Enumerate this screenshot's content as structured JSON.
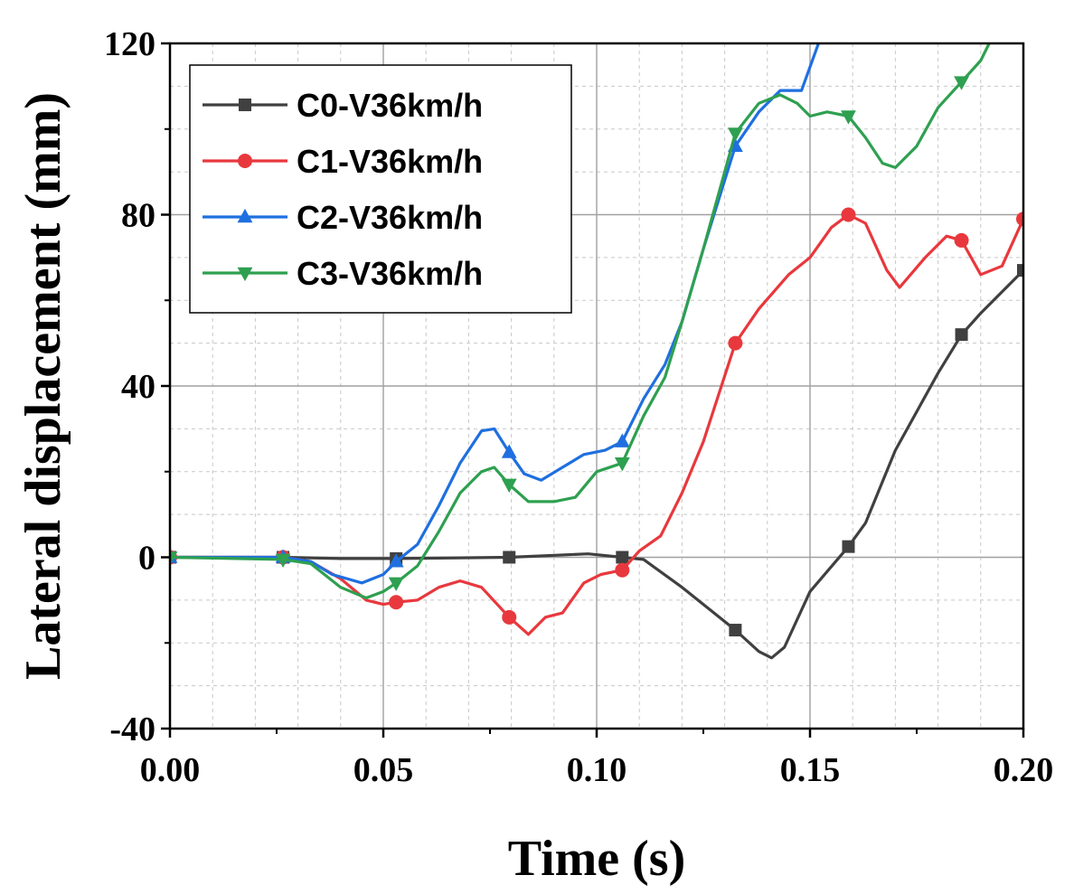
{
  "chart_data": {
    "type": "line",
    "xlabel": "Time (s)",
    "ylabel": "Lateral displacement (mm)",
    "xlim": [
      0,
      0.2
    ],
    "ylim": [
      -40,
      120
    ],
    "x_ticks": [
      0,
      0.05,
      0.1,
      0.15,
      0.2
    ],
    "x_tick_labels": [
      "0.00",
      "0.05",
      "0.10",
      "0.15",
      "0.20"
    ],
    "y_ticks": [
      -40,
      0,
      40,
      80,
      120
    ],
    "y_tick_labels": [
      "-40",
      "0",
      "40",
      "80",
      "120"
    ],
    "grid": true,
    "legend_position": "top-left",
    "series": [
      {
        "name": "C0-V36km/h",
        "color": "#404040",
        "marker": "square",
        "marker_x": [
          0,
          0.0265,
          0.053,
          0.0795,
          0.106,
          0.1325,
          0.159,
          0.1855,
          0.2
        ],
        "points": [
          [
            0,
            0
          ],
          [
            0.0265,
            0
          ],
          [
            0.04,
            -0.3
          ],
          [
            0.053,
            -0.3
          ],
          [
            0.0795,
            0
          ],
          [
            0.098,
            0.8
          ],
          [
            0.106,
            0
          ],
          [
            0.111,
            -0.5
          ],
          [
            0.12,
            -7
          ],
          [
            0.1325,
            -17
          ],
          [
            0.138,
            -22
          ],
          [
            0.141,
            -23.5
          ],
          [
            0.144,
            -21
          ],
          [
            0.15,
            -8
          ],
          [
            0.159,
            2.5
          ],
          [
            0.163,
            8
          ],
          [
            0.17,
            25
          ],
          [
            0.18,
            43
          ],
          [
            0.1855,
            52
          ],
          [
            0.19,
            57
          ],
          [
            0.2,
            67
          ]
        ]
      },
      {
        "name": "C1-V36km/h",
        "color": "#e8383d",
        "marker": "circle",
        "marker_x": [
          0,
          0.0265,
          0.053,
          0.0795,
          0.106,
          0.1325,
          0.159,
          0.1855,
          0.2
        ],
        "points": [
          [
            0,
            0
          ],
          [
            0.0265,
            0
          ],
          [
            0.033,
            -1
          ],
          [
            0.04,
            -5
          ],
          [
            0.046,
            -10
          ],
          [
            0.05,
            -11
          ],
          [
            0.053,
            -10.5
          ],
          [
            0.058,
            -10
          ],
          [
            0.063,
            -7
          ],
          [
            0.068,
            -5.5
          ],
          [
            0.073,
            -7
          ],
          [
            0.0795,
            -14
          ],
          [
            0.084,
            -18
          ],
          [
            0.088,
            -14
          ],
          [
            0.092,
            -13
          ],
          [
            0.097,
            -6
          ],
          [
            0.101,
            -4
          ],
          [
            0.106,
            -3
          ],
          [
            0.11,
            1.5
          ],
          [
            0.115,
            5
          ],
          [
            0.12,
            15
          ],
          [
            0.125,
            27
          ],
          [
            0.1325,
            50
          ],
          [
            0.138,
            58
          ],
          [
            0.145,
            66
          ],
          [
            0.15,
            70
          ],
          [
            0.155,
            77
          ],
          [
            0.159,
            80
          ],
          [
            0.163,
            78
          ],
          [
            0.168,
            67
          ],
          [
            0.171,
            63
          ],
          [
            0.177,
            70
          ],
          [
            0.182,
            75
          ],
          [
            0.1855,
            74
          ],
          [
            0.19,
            66
          ],
          [
            0.195,
            68
          ],
          [
            0.2,
            79
          ]
        ]
      },
      {
        "name": "C2-V36km/h",
        "color": "#1f6fe0",
        "marker": "triangle-up",
        "marker_x": [
          0,
          0.0265,
          0.053,
          0.0795,
          0.106,
          0.1325
        ],
        "points": [
          [
            0,
            0
          ],
          [
            0.0265,
            0
          ],
          [
            0.033,
            -1
          ],
          [
            0.038,
            -4
          ],
          [
            0.045,
            -6
          ],
          [
            0.05,
            -4
          ],
          [
            0.053,
            -1
          ],
          [
            0.058,
            3
          ],
          [
            0.063,
            12
          ],
          [
            0.068,
            22
          ],
          [
            0.073,
            29.5
          ],
          [
            0.076,
            30
          ],
          [
            0.0795,
            24.5
          ],
          [
            0.083,
            19.5
          ],
          [
            0.087,
            18
          ],
          [
            0.092,
            21
          ],
          [
            0.097,
            24
          ],
          [
            0.102,
            25
          ],
          [
            0.106,
            27
          ],
          [
            0.111,
            37
          ],
          [
            0.116,
            45
          ],
          [
            0.12,
            55
          ],
          [
            0.125,
            72
          ],
          [
            0.1325,
            96
          ],
          [
            0.138,
            104
          ],
          [
            0.143,
            109
          ],
          [
            0.148,
            109
          ],
          [
            0.152,
            120
          ]
        ]
      },
      {
        "name": "C3-V36km/h",
        "color": "#2ea050",
        "marker": "triangle-down",
        "marker_x": [
          0,
          0.0265,
          0.053,
          0.0795,
          0.106,
          0.1325,
          0.159,
          0.1855
        ],
        "points": [
          [
            0,
            0
          ],
          [
            0.0265,
            -0.5
          ],
          [
            0.033,
            -1.5
          ],
          [
            0.04,
            -7
          ],
          [
            0.046,
            -9.5
          ],
          [
            0.05,
            -8
          ],
          [
            0.053,
            -6
          ],
          [
            0.058,
            -2
          ],
          [
            0.063,
            6
          ],
          [
            0.068,
            15
          ],
          [
            0.073,
            20
          ],
          [
            0.076,
            21
          ],
          [
            0.0795,
            17
          ],
          [
            0.084,
            13
          ],
          [
            0.09,
            13
          ],
          [
            0.095,
            14
          ],
          [
            0.1,
            20
          ],
          [
            0.106,
            22
          ],
          [
            0.111,
            33
          ],
          [
            0.116,
            42
          ],
          [
            0.12,
            55
          ],
          [
            0.125,
            72
          ],
          [
            0.1325,
            99
          ],
          [
            0.138,
            106
          ],
          [
            0.143,
            108
          ],
          [
            0.147,
            106
          ],
          [
            0.15,
            103
          ],
          [
            0.154,
            104
          ],
          [
            0.159,
            103
          ],
          [
            0.163,
            98
          ],
          [
            0.167,
            92
          ],
          [
            0.17,
            91
          ],
          [
            0.175,
            96
          ],
          [
            0.18,
            105
          ],
          [
            0.1855,
            111
          ],
          [
            0.19,
            116
          ],
          [
            0.192,
            120
          ]
        ]
      }
    ]
  }
}
